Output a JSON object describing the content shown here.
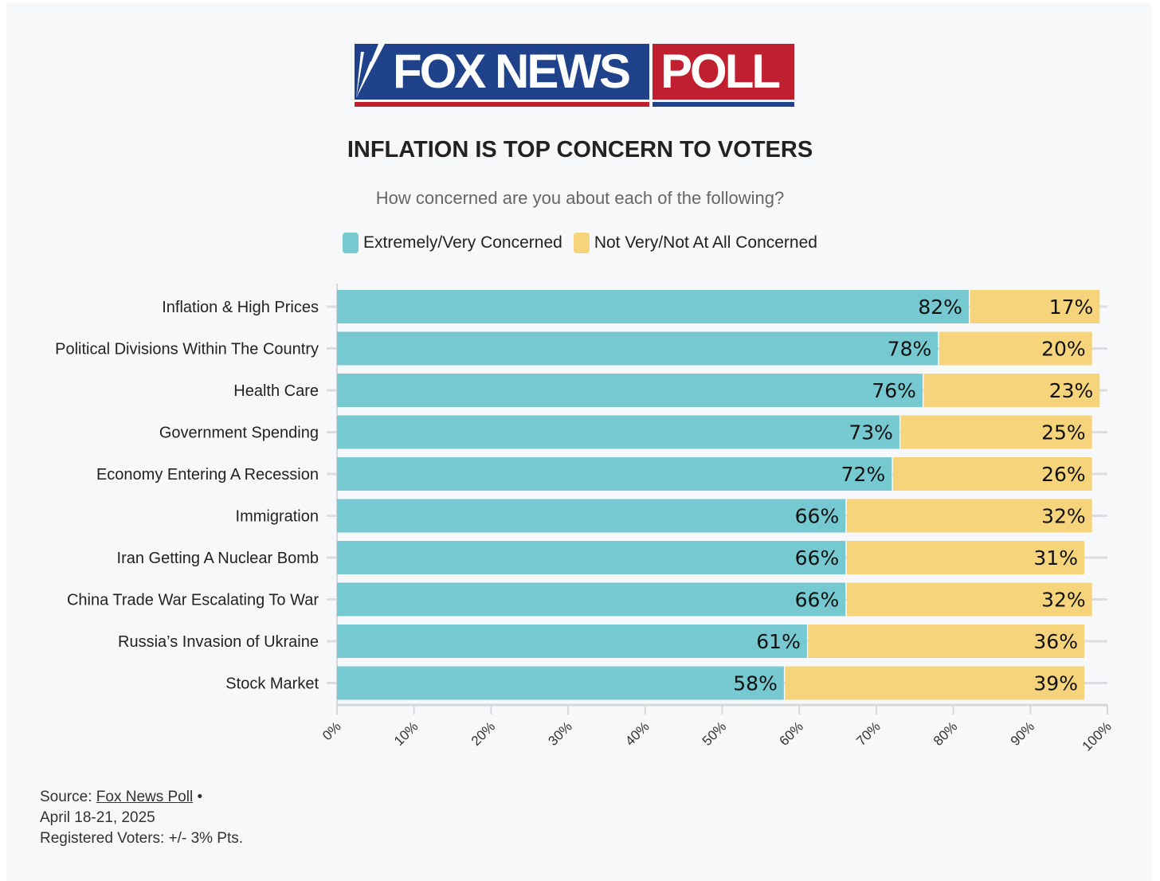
{
  "logo": {
    "left_text": "FOX NEWS",
    "right_text": "POLL"
  },
  "chart_data": {
    "type": "bar",
    "orientation": "horizontal-stacked",
    "title": "INFLATION IS TOP CONCERN TO VOTERS",
    "subtitle": "How concerned are you about each of the following?",
    "categories": [
      "Inflation & High Prices",
      "Political Divisions Within The Country",
      "Health Care",
      "Government Spending",
      "Economy Entering A Recession",
      "Immigration",
      "Iran Getting A Nuclear Bomb",
      "China Trade War Escalating To War",
      "Russia’s Invasion of Ukraine",
      "Stock Market"
    ],
    "series": [
      {
        "name": "Extremely/Very Concerned",
        "color": "#76c9d0",
        "values": [
          82,
          78,
          76,
          73,
          72,
          66,
          66,
          66,
          61,
          58
        ]
      },
      {
        "name": "Not Very/Not At All Concerned",
        "color": "#f6d47c",
        "values": [
          17,
          20,
          23,
          25,
          26,
          32,
          31,
          32,
          36,
          39
        ]
      }
    ],
    "xlim": [
      0,
      100
    ],
    "xticks": [
      "0%",
      "10%",
      "20%",
      "30%",
      "40%",
      "50%",
      "60%",
      "70%",
      "80%",
      "90%",
      "100%"
    ],
    "legend": "top"
  },
  "source": {
    "label": "Source:",
    "link": "Fox News Poll",
    "sep": "•",
    "date": "April 18-21, 2025",
    "note": "Registered Voters: +/- 3% Pts."
  }
}
